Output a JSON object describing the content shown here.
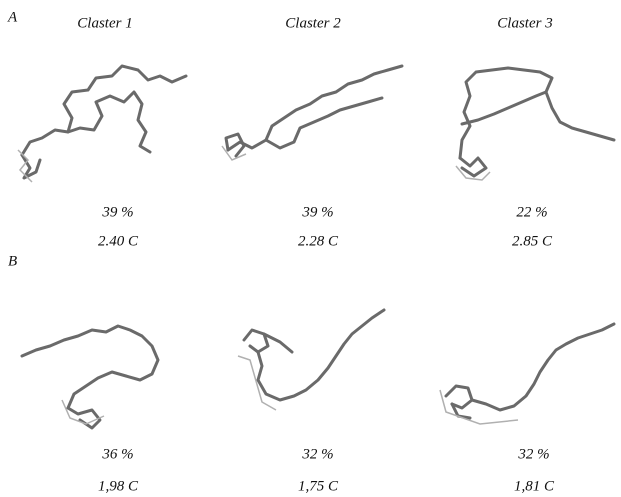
{
  "panels": [
    {
      "label": "A",
      "clusters": [
        {
          "title": "Claster 1",
          "share": "39 %",
          "energy": "2.40 C"
        },
        {
          "title": "Claster 2",
          "share": "39 %",
          "energy": "2.28 C"
        },
        {
          "title": "Claster 3",
          "share": "22 %",
          "energy": "2.85 C"
        }
      ]
    },
    {
      "label": "B",
      "clusters": [
        {
          "share": "36 %",
          "energy": "1,98 C"
        },
        {
          "share": "32 %",
          "energy": "1,75 C"
        },
        {
          "share": "32 %",
          "energy": "1,81 C"
        }
      ]
    }
  ]
}
